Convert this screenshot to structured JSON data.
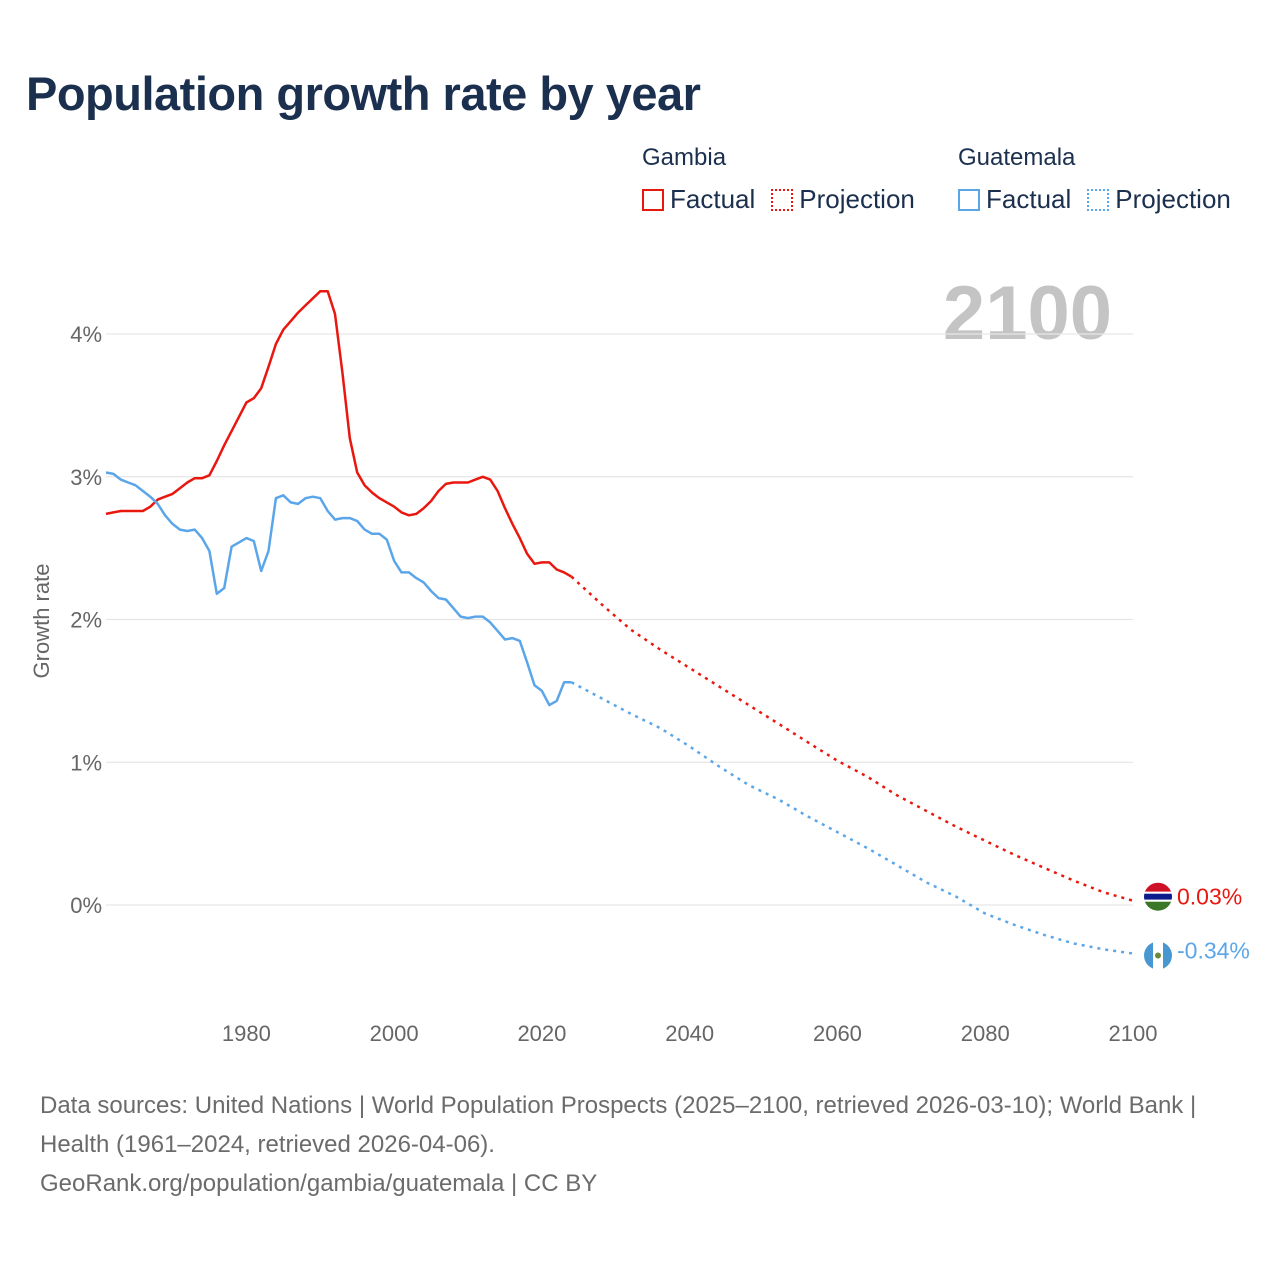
{
  "title": "Population growth rate by year",
  "year_label": "2100",
  "legend": {
    "groups": [
      {
        "name": "Gambia",
        "color": "#e8180f",
        "factual": "Factual",
        "projection": "Projection"
      },
      {
        "name": "Guatemala",
        "color": "#5ba6e9",
        "factual": "Factual",
        "projection": "Projection"
      }
    ]
  },
  "end_labels": {
    "gambia": "0.03%",
    "guatemala": "-0.34%"
  },
  "footer": {
    "sources": "Data sources: United Nations | World Population Prospects (2025–2100, retrieved 2026-03-10); World Bank | Health (1961–2024, retrieved 2026-04-06).",
    "credit": "GeoRank.org/population/gambia/guatemala | CC BY"
  },
  "chart_data": {
    "type": "line",
    "title": "Population growth rate by year",
    "xlabel": "",
    "ylabel": "Growth rate",
    "xlim": [
      1961,
      2100
    ],
    "ylim": [
      -0.5,
      4.5
    ],
    "x_ticks": [
      1980,
      2000,
      2020,
      2040,
      2060,
      2080,
      2100
    ],
    "x_tick_labels": [
      "1980",
      "2000",
      "2020",
      "2040",
      "2060",
      "2080",
      "2100"
    ],
    "y_ticks": [
      0,
      1,
      2,
      3,
      4
    ],
    "y_tick_labels": [
      "0%",
      "1%",
      "2%",
      "3%",
      "4%"
    ],
    "grid": true,
    "series": [
      {
        "name": "Gambia",
        "kind": "Factual",
        "style": "solid",
        "color": "#e8180f",
        "x": [
          1961,
          1962,
          1963,
          1964,
          1965,
          1966,
          1967,
          1968,
          1969,
          1970,
          1971,
          1972,
          1973,
          1974,
          1975,
          1976,
          1977,
          1978,
          1979,
          1980,
          1981,
          1982,
          1983,
          1984,
          1985,
          1986,
          1987,
          1988,
          1989,
          1990,
          1991,
          1992,
          1993,
          1994,
          1995,
          1996,
          1997,
          1998,
          1999,
          2000,
          2001,
          2002,
          2003,
          2004,
          2005,
          2006,
          2007,
          2008,
          2009,
          2010,
          2011,
          2012,
          2013,
          2014,
          2015,
          2016,
          2017,
          2018,
          2019,
          2020,
          2021,
          2022,
          2023,
          2024
        ],
        "values": [
          2.74,
          2.75,
          2.76,
          2.76,
          2.76,
          2.76,
          2.79,
          2.84,
          2.86,
          2.88,
          2.92,
          2.96,
          2.99,
          2.99,
          3.01,
          3.11,
          3.22,
          3.32,
          3.42,
          3.52,
          3.55,
          3.62,
          3.77,
          3.93,
          4.03,
          4.09,
          4.15,
          4.2,
          4.25,
          4.3,
          4.3,
          4.14,
          3.73,
          3.27,
          3.03,
          2.94,
          2.89,
          2.85,
          2.82,
          2.79,
          2.75,
          2.73,
          2.74,
          2.78,
          2.83,
          2.9,
          2.95,
          2.96,
          2.96,
          2.96,
          2.98,
          3.0,
          2.98,
          2.9,
          2.78,
          2.67,
          2.57,
          2.46,
          2.39,
          2.4,
          2.4,
          2.35,
          2.33,
          2.3
        ]
      },
      {
        "name": "Gambia",
        "kind": "Projection",
        "style": "dotted",
        "color": "#e8180f",
        "x": [
          2024,
          2028,
          2032,
          2036,
          2040,
          2044,
          2048,
          2052,
          2056,
          2060,
          2064,
          2068,
          2072,
          2076,
          2080,
          2084,
          2088,
          2092,
          2096,
          2100
        ],
        "values": [
          2.3,
          2.11,
          1.93,
          1.79,
          1.66,
          1.53,
          1.4,
          1.27,
          1.14,
          1.01,
          0.9,
          0.77,
          0.66,
          0.55,
          0.45,
          0.35,
          0.26,
          0.17,
          0.09,
          0.03
        ]
      },
      {
        "name": "Guatemala",
        "kind": "Factual",
        "style": "solid",
        "color": "#5ba6e9",
        "x": [
          1961,
          1962,
          1963,
          1964,
          1965,
          1966,
          1967,
          1968,
          1969,
          1970,
          1971,
          1972,
          1973,
          1974,
          1975,
          1976,
          1977,
          1978,
          1979,
          1980,
          1981,
          1982,
          1983,
          1984,
          1985,
          1986,
          1987,
          1988,
          1989,
          1990,
          1991,
          1992,
          1993,
          1994,
          1995,
          1996,
          1997,
          1998,
          1999,
          2000,
          2001,
          2002,
          2003,
          2004,
          2005,
          2006,
          2007,
          2008,
          2009,
          2010,
          2011,
          2012,
          2013,
          2014,
          2015,
          2016,
          2017,
          2018,
          2019,
          2020,
          2021,
          2022,
          2023,
          2024
        ],
        "values": [
          3.03,
          3.02,
          2.98,
          2.96,
          2.94,
          2.9,
          2.86,
          2.81,
          2.73,
          2.67,
          2.63,
          2.62,
          2.63,
          2.57,
          2.48,
          2.18,
          2.22,
          2.51,
          2.54,
          2.57,
          2.55,
          2.34,
          2.48,
          2.85,
          2.87,
          2.82,
          2.81,
          2.85,
          2.86,
          2.85,
          2.76,
          2.7,
          2.71,
          2.71,
          2.69,
          2.63,
          2.6,
          2.6,
          2.56,
          2.41,
          2.33,
          2.33,
          2.29,
          2.26,
          2.2,
          2.15,
          2.14,
          2.08,
          2.02,
          2.01,
          2.02,
          2.02,
          1.98,
          1.92,
          1.86,
          1.87,
          1.85,
          1.7,
          1.54,
          1.5,
          1.4,
          1.43,
          1.56,
          1.56
        ]
      },
      {
        "name": "Guatemala",
        "kind": "Projection",
        "style": "dotted",
        "color": "#5ba6e9",
        "x": [
          2024,
          2028,
          2032,
          2036,
          2040,
          2044,
          2048,
          2052,
          2056,
          2060,
          2064,
          2068,
          2072,
          2076,
          2080,
          2084,
          2088,
          2092,
          2096,
          2100
        ],
        "values": [
          1.56,
          1.45,
          1.34,
          1.24,
          1.11,
          0.97,
          0.84,
          0.74,
          0.62,
          0.51,
          0.4,
          0.28,
          0.16,
          0.06,
          -0.06,
          -0.14,
          -0.21,
          -0.27,
          -0.31,
          -0.34
        ]
      }
    ]
  }
}
